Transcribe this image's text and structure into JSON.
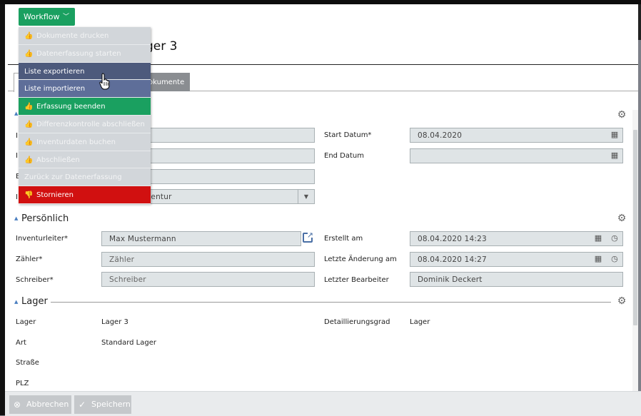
{
  "toolbar": {
    "workflow_label": "Workflow",
    "chevron_icon": "chevron-down-icon"
  },
  "workflow_menu": [
    {
      "label": "Dokumente drucken",
      "icon": "thumbs-up-icon",
      "state": "disabled"
    },
    {
      "label": "Datenerfassung starten",
      "icon": "thumbs-up-icon",
      "state": "disabled"
    },
    {
      "label": "Liste exportieren",
      "icon": "",
      "state": "active"
    },
    {
      "label": "Liste importieren",
      "icon": "",
      "state": "hover"
    },
    {
      "label": "Erfassung beenden",
      "icon": "thumbs-up-icon",
      "state": "green"
    },
    {
      "label": "Differenzkontrolle abschließen",
      "icon": "thumbs-up-icon",
      "state": "disabled"
    },
    {
      "label": "Inventurdaten buchen",
      "icon": "thumbs-up-icon",
      "state": "disabled"
    },
    {
      "label": "Abschließen",
      "icon": "thumbs-up-icon",
      "state": "disabled"
    },
    {
      "label": "Zurück zur Datenerfassung",
      "icon": "",
      "state": "disabled"
    },
    {
      "label": "Stornieren",
      "icon": "thumbs-down-icon",
      "state": "red"
    }
  ],
  "page": {
    "title_fragment": "ger 3"
  },
  "tabs": {
    "documents_fragment": "okumente"
  },
  "general": {
    "label_fragments": [
      "I",
      "I",
      "B",
      "I"
    ],
    "select_fragment": "ventur",
    "start_date_label": "Start Datum*",
    "start_date_value": "08.04.2020",
    "end_date_label": "End Datum",
    "end_date_value": ""
  },
  "personal": {
    "title": "Persönlich",
    "manager_label": "Inventurleiter*",
    "manager_value": "Max  Mustermann",
    "counter_label": "Zähler*",
    "counter_placeholder": "Zähler",
    "writer_label": "Schreiber*",
    "writer_placeholder": "Schreiber",
    "created_label": "Erstellt am",
    "created_value": "08.04.2020 14:23",
    "changed_label": "Letzte Änderung am",
    "changed_value": "08.04.2020 14:27",
    "editor_label": "Letzter Bearbeiter",
    "editor_value": "Dominik Deckert"
  },
  "warehouse": {
    "title": "Lager",
    "lager_label": "Lager",
    "lager_value": "Lager 3",
    "art_label": "Art",
    "art_value": "Standard Lager",
    "strasse_label": "Straße",
    "plz_label": "PLZ",
    "detail_label": "Detaillierungsgrad",
    "detail_value": "Lager"
  },
  "footer": {
    "cancel_label": "Abbrechen",
    "save_label": "Speichern"
  },
  "colors": {
    "green": "#1aa060",
    "red": "#d11010",
    "active": "#4d5a7c",
    "hover": "#5e6e99"
  }
}
